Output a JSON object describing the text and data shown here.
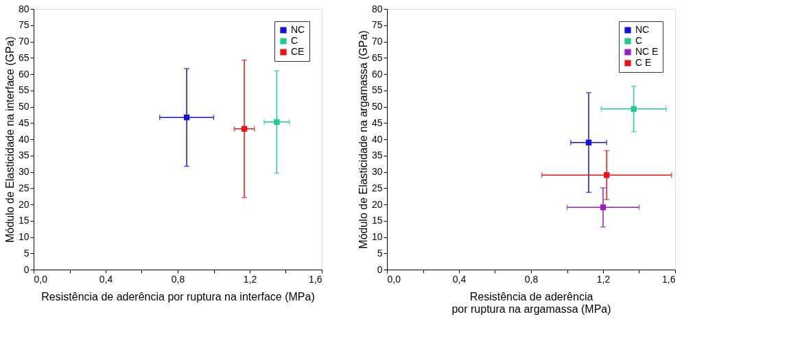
{
  "chart_data": [
    {
      "type": "scatter",
      "xlabel": "Resistência de aderência por ruptura na interface (MPa)",
      "ylabel": "Módulo de Elasticidade na interface (GPa)",
      "xlim": [
        0,
        1.6
      ],
      "ylim": [
        0,
        80
      ],
      "xticks": [
        {
          "value": 0,
          "label": "0,0"
        },
        {
          "value": 0.2,
          "label": null
        },
        {
          "value": 0.4,
          "label": "0,4"
        },
        {
          "value": 0.6,
          "label": null
        },
        {
          "value": 0.8,
          "label": "0,8"
        },
        {
          "value": 1.0,
          "label": null
        },
        {
          "value": 1.2,
          "label": "1,2"
        },
        {
          "value": 1.4,
          "label": null
        },
        {
          "value": 1.6,
          "label": "1,6"
        }
      ],
      "yticks": [
        0,
        5,
        10,
        15,
        20,
        25,
        30,
        35,
        40,
        45,
        50,
        55,
        60,
        65,
        70,
        75,
        80
      ],
      "marker": "square",
      "legend": "top right",
      "grid": false,
      "series": [
        {
          "name": "NC",
          "color": "#1010e0",
          "x": [
            0.85
          ],
          "values": [
            46.7
          ],
          "errors": [
            15
          ],
          "xerrors": [
            0.15
          ]
        },
        {
          "name": "C",
          "color": "#20cc8c",
          "x": [
            1.35
          ],
          "values": [
            45.3
          ],
          "errors": [
            15.7
          ],
          "xerrors": [
            0.07
          ]
        },
        {
          "name": "CE",
          "color": "#ee1111",
          "x": [
            1.17
          ],
          "values": [
            43.2
          ],
          "errors": [
            21.1
          ],
          "xerrors": [
            0.056
          ]
        }
      ]
    },
    {
      "type": "scatter",
      "xlabel": "Resistência de aderência\npor ruptura na argamassa (MPa)",
      "ylabel": "Módulo de Elasticidade na argamassa (GPa)",
      "xlim": [
        0,
        1.6
      ],
      "ylim": [
        0,
        80
      ],
      "xticks": [
        {
          "value": 0,
          "label": "0,0"
        },
        {
          "value": 0.2,
          "label": null
        },
        {
          "value": 0.4,
          "label": "0,4"
        },
        {
          "value": 0.6,
          "label": null
        },
        {
          "value": 0.8,
          "label": "0,8"
        },
        {
          "value": 1.0,
          "label": null
        },
        {
          "value": 1.2,
          "label": "1,2"
        },
        {
          "value": 1.4,
          "label": null
        },
        {
          "value": 1.6,
          "label": "1,6"
        }
      ],
      "yticks": [
        0,
        5,
        10,
        15,
        20,
        25,
        30,
        35,
        40,
        45,
        50,
        55,
        60,
        65,
        70,
        75,
        80
      ],
      "marker": "square",
      "legend": "top right",
      "grid": false,
      "series": [
        {
          "name": "NC",
          "color": "#1010e0",
          "x": [
            1.12
          ],
          "values": [
            39.0
          ],
          "errors": [
            15.3
          ],
          "xerrors": [
            0.1
          ]
        },
        {
          "name": "C",
          "color": "#20cc8c",
          "x": [
            1.37
          ],
          "values": [
            49.3
          ],
          "errors": [
            7
          ],
          "xerrors": [
            0.18
          ]
        },
        {
          "name": "NC E",
          "color": "#9a1ccc",
          "x": [
            1.2
          ],
          "values": [
            19.1
          ],
          "errors": [
            6
          ],
          "xerrors": [
            0.2
          ]
        },
        {
          "name": "C E",
          "color": "#ee1111",
          "x": [
            1.22
          ],
          "values": [
            29.0
          ],
          "errors": [
            7.5
          ],
          "xerrors": [
            0.36
          ]
        }
      ]
    }
  ]
}
